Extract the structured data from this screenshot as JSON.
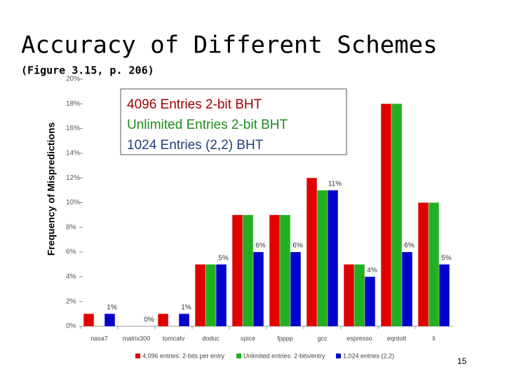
{
  "chart_data": {
    "type": "bar",
    "title": "Accuracy of Different Schemes",
    "subtitle": "(Figure 3.15, p. 206)",
    "y_label": "Frequency of Mispredictions",
    "annotation_lines": [
      {
        "text": "4096 Entries 2-bit BHT",
        "color": "#a00000"
      },
      {
        "text": "Unlimited Entries 2-bit BHT",
        "color": "#1e8c1e"
      },
      {
        "text": "1024 Entries (2,2) BHT",
        "color": "#23407a"
      }
    ],
    "categories": [
      "nasa7",
      "matrix300",
      "tomcatv",
      "doduc",
      "spice",
      "fpppp",
      "gcc",
      "espresso",
      "eqntott",
      "li"
    ],
    "series": [
      {
        "name": "4,096 entries: 2-bits per entry",
        "color": "#e00000",
        "values": [
          1,
          0,
          1,
          5,
          9,
          9,
          12,
          5,
          18,
          10
        ]
      },
      {
        "name": "Unlimited entries: 2-bits/entry",
        "color": "#22b022",
        "values": [
          0,
          0,
          0,
          5,
          9,
          9,
          11,
          5,
          18,
          10
        ]
      },
      {
        "name": "1,024 entries (2,2)",
        "color": "#0000cc",
        "values": [
          1,
          0,
          1,
          5,
          6,
          6,
          11,
          4,
          6,
          5
        ],
        "value_labels": [
          "1%",
          "0%",
          "1%",
          "5%",
          "6%",
          "6%",
          "11%",
          "4%",
          "6%",
          "5%"
        ]
      }
    ],
    "ylim": [
      0,
      20
    ],
    "yticks": [
      {
        "value": 0,
        "label": "0%"
      },
      {
        "value": 2,
        "label": "2%"
      },
      {
        "value": 4,
        "label": "4%"
      },
      {
        "value": 6,
        "label": "6%"
      },
      {
        "value": 8,
        "label": "8%"
      },
      {
        "value": 10,
        "label": "10%"
      },
      {
        "value": 12,
        "label": "12%"
      },
      {
        "value": 14,
        "label": "14%"
      },
      {
        "value": 16,
        "label": "16%"
      },
      {
        "value": 18,
        "label": "18%"
      },
      {
        "value": 20,
        "label": "20%"
      }
    ],
    "grid": false
  },
  "page_number": "15"
}
